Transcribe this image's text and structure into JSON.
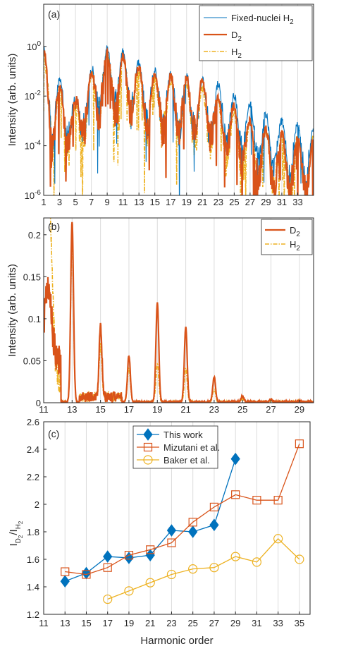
{
  "colors": {
    "fixed": "#0072BD",
    "d2": "#D95319",
    "h2": "#EDB120",
    "axis": "#262626",
    "grid": "#DCDCDC"
  },
  "chart_data": [
    {
      "panel": "(a)",
      "type": "line",
      "ylabel": "Intensity (arb. units)",
      "yscale": "log",
      "xlim": [
        1,
        35
      ],
      "ylim": [
        1e-06,
        50
      ],
      "x_ticks": [
        1,
        3,
        5,
        7,
        9,
        11,
        13,
        15,
        17,
        19,
        21,
        23,
        25,
        27,
        29,
        31,
        33
      ],
      "y_ticks": [
        {
          "value": 1e-06,
          "base": "10",
          "exp": "-6"
        },
        {
          "value": 0.0001,
          "base": "10",
          "exp": "-4"
        },
        {
          "value": 0.01,
          "base": "10",
          "exp": "-2"
        },
        {
          "value": 1,
          "base": "10",
          "exp": "0"
        }
      ],
      "grid": "vertical",
      "legend": "top-right",
      "series": [
        {
          "key": "fixed",
          "name": "Fixed-nuclei H",
          "sub": "2",
          "style": "solid"
        },
        {
          "key": "d2",
          "name": "D",
          "sub": "2",
          "style": "solid-thick"
        },
        {
          "key": "h2",
          "name": "H",
          "sub": "2",
          "style": "dashdot"
        }
      ],
      "envelope": {
        "x": [
          1,
          2,
          3,
          5,
          7,
          9,
          11,
          13,
          15,
          17,
          19,
          21,
          23,
          25,
          27,
          29,
          31,
          33,
          35
        ],
        "fixed": [
          0.8,
          0.02,
          0.05,
          0.005,
          0.1,
          0.8,
          0.6,
          0.2,
          0.1,
          0.08,
          0.06,
          0.05,
          0.03,
          0.01,
          0.005,
          0.002,
          0.001,
          0.0008,
          0.0005
        ],
        "d2": [
          0.6,
          0.01,
          0.03,
          0.004,
          0.08,
          0.5,
          0.4,
          0.15,
          0.08,
          0.06,
          0.05,
          0.05,
          0.01,
          0.004,
          0.001,
          0.0005,
          0.0003,
          0.0002,
          0.0002
        ],
        "h2": [
          0.5,
          0.01,
          0.03,
          0.003,
          0.06,
          0.6,
          0.5,
          0.1,
          0.05,
          0.04,
          0.03,
          0.02,
          0.005,
          0.002,
          0.0008,
          0.0004,
          0.0003,
          0.0002,
          0.0002
        ]
      }
    },
    {
      "panel": "(b)",
      "type": "line",
      "ylabel": "Intensity (arb. units)",
      "xlim": [
        11,
        30
      ],
      "ylim": [
        0,
        0.22
      ],
      "x_ticks": [
        11,
        13,
        15,
        17,
        19,
        21,
        23,
        25,
        27,
        29
      ],
      "y_ticks": [
        0,
        0.05,
        0.1,
        0.15,
        0.2
      ],
      "grid": "vertical",
      "legend": "top-right",
      "series": [
        {
          "key": "d2",
          "name": "D",
          "sub": "2",
          "style": "solid-thick"
        },
        {
          "key": "h2",
          "name": "H",
          "sub": "2",
          "style": "dashdot"
        }
      ],
      "peaks": {
        "x": [
          11.3,
          13,
          15,
          17,
          19,
          21,
          23,
          25,
          27,
          29
        ],
        "d2": [
          0.085,
          0.215,
          0.085,
          0.055,
          0.118,
          0.089,
          0.03,
          0.007,
          0.003,
          0.001
        ],
        "h2": [
          0.22,
          0.19,
          0.06,
          0.04,
          0.045,
          0.04,
          0.015,
          0.004,
          0.002,
          0.001
        ]
      }
    },
    {
      "panel": "(c)",
      "type": "line",
      "xlabel": "Harmonic order",
      "ylabel_main": "I",
      "ylabel_sub1": "D",
      "ylabel_sub2": "2",
      "ylabel_sep": "/I",
      "ylabel_sub3": "H",
      "ylabel_sub4": "2",
      "xlim": [
        11,
        36
      ],
      "ylim": [
        1.2,
        2.6
      ],
      "x_ticks": [
        11,
        13,
        15,
        17,
        19,
        21,
        23,
        25,
        27,
        29,
        31,
        33,
        35
      ],
      "y_ticks": [
        1.2,
        1.4,
        1.6,
        1.8,
        2,
        2.2,
        2.4,
        2.6
      ],
      "grid": "vertical",
      "legend": "top-left",
      "series": [
        {
          "key": "fixed",
          "name": "This work",
          "marker": "diamond",
          "x": [
            13,
            15,
            17,
            19,
            21,
            23,
            25,
            27,
            29
          ],
          "values": [
            1.44,
            1.5,
            1.62,
            1.61,
            1.63,
            1.81,
            1.8,
            1.85,
            2.33
          ]
        },
        {
          "key": "d2",
          "name": "Mizutani et al.",
          "marker": "square",
          "x": [
            13,
            15,
            17,
            19,
            21,
            23,
            25,
            27,
            29,
            31,
            33,
            35
          ],
          "values": [
            1.51,
            1.49,
            1.54,
            1.63,
            1.67,
            1.72,
            1.87,
            1.98,
            2.07,
            2.03,
            2.03,
            2.44
          ]
        },
        {
          "key": "h2",
          "name": "Baker et al.",
          "marker": "circle",
          "x": [
            17,
            19,
            21,
            23,
            25,
            27,
            29,
            31,
            33,
            35
          ],
          "values": [
            1.31,
            1.37,
            1.43,
            1.49,
            1.53,
            1.54,
            1.62,
            1.58,
            1.75,
            1.6
          ]
        }
      ]
    }
  ]
}
